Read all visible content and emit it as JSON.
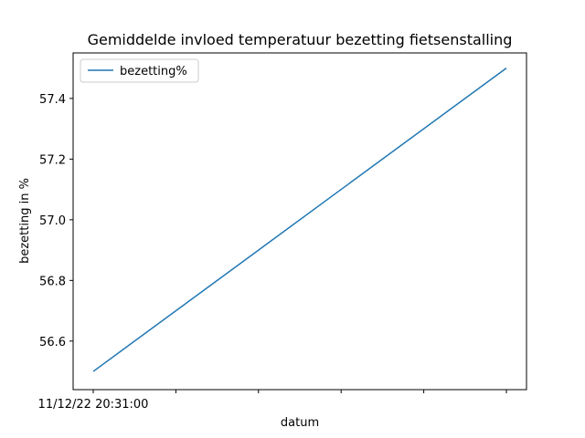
{
  "chart_data": {
    "type": "line",
    "title": "Gemiddelde invloed temperatuur bezetting fietsenstalling",
    "xlabel": "datum",
    "ylabel": "bezetting in %",
    "x_tick_labels": [
      "11/12/22 20:31:00",
      "",
      "",
      "",
      "",
      ""
    ],
    "ylim": [
      56.44,
      57.55
    ],
    "y_ticks": [
      56.6,
      56.8,
      57.0,
      57.2,
      57.4
    ],
    "grid": false,
    "legend": {
      "position": "top-left"
    },
    "series": [
      {
        "name": "bezetting%",
        "color": "#1f77b4",
        "values": [
          56.5,
          57.5
        ]
      }
    ]
  }
}
